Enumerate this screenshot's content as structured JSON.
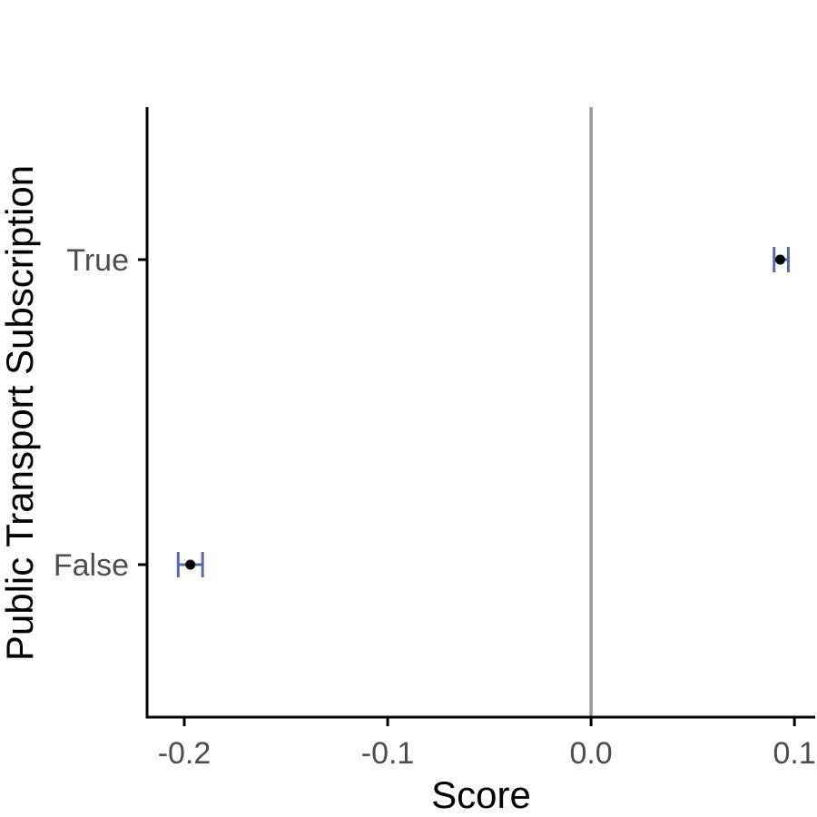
{
  "chart_data": {
    "type": "scatter",
    "title": "",
    "xlabel": "Score",
    "ylabel": "Public Transport Subscription",
    "xlim": [
      -0.2183,
      0.1102
    ],
    "x_ticks": [
      {
        "value": -0.2,
        "label": "-0.2"
      },
      {
        "value": -0.1,
        "label": "-0.1"
      },
      {
        "value": 0.0,
        "label": "0.0"
      },
      {
        "value": 0.1,
        "label": "0.1"
      }
    ],
    "categories": [
      "True",
      "False"
    ],
    "points": [
      {
        "category": "True",
        "value": 0.093,
        "ci_low": 0.09,
        "ci_high": 0.097
      },
      {
        "category": "False",
        "value": -0.197,
        "ci_low": -0.203,
        "ci_high": -0.191
      }
    ],
    "reference_line": {
      "x": 0.0
    },
    "grid": false,
    "legend": "none",
    "colors": {
      "point": "#000000",
      "error_bar": "#5a6aa8",
      "reference_line": "#999999",
      "axis": "#000000",
      "tick_label": "#4d4d4d"
    }
  }
}
